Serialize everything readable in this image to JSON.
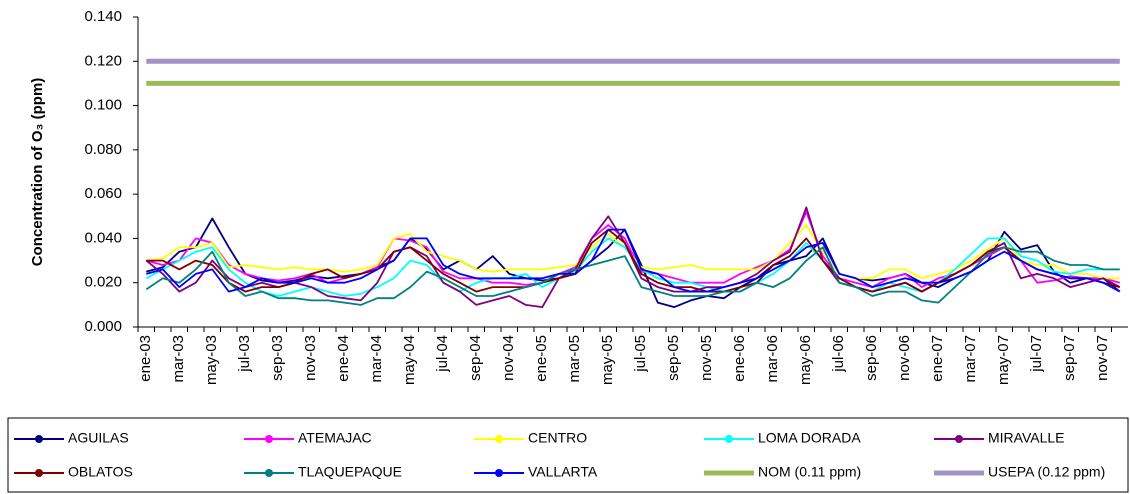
{
  "chart_data": {
    "type": "line",
    "ylabel": "Concentration of O₃ (ppm)",
    "categories": [
      "ene-03",
      null,
      "mar-03",
      null,
      "may-03",
      null,
      "jul-03",
      null,
      "sep-03",
      null,
      "nov-03",
      null,
      "ene-04",
      null,
      "mar-04",
      null,
      "may-04",
      null,
      "jul-04",
      null,
      "sep-04",
      null,
      "nov-04",
      null,
      "ene-05",
      null,
      "mar-05",
      null,
      "may-05",
      null,
      "jul-05",
      null,
      "sep-05",
      null,
      "nov-05",
      null,
      "ene-06",
      null,
      "mar-06",
      null,
      "may-06",
      null,
      "jul-06",
      null,
      "sep-06",
      null,
      "nov-06",
      null,
      "ene-07",
      null,
      "mar-07",
      null,
      "may-07",
      null,
      "jul-07",
      null,
      "sep-07",
      null,
      "nov-07",
      null
    ],
    "ylim": [
      0,
      0.14
    ],
    "yticks": [
      {
        "value": 0,
        "label": "0.000"
      },
      {
        "value": 0.02,
        "label": "0.020"
      },
      {
        "value": 0.04,
        "label": "0.040"
      },
      {
        "value": 0.06,
        "label": "0.060"
      },
      {
        "value": 0.08,
        "label": "0.080"
      },
      {
        "value": 0.1,
        "label": "0.100"
      },
      {
        "value": 0.12,
        "label": "0.120"
      },
      {
        "value": 0.14,
        "label": "0.140"
      }
    ],
    "grid": false,
    "series": [
      {
        "name": "AGUILAS",
        "color": "#000080",
        "values": [
          0.025,
          0.027,
          0.034,
          0.036,
          0.049,
          0.036,
          0.024,
          0.021,
          0.02,
          0.021,
          0.023,
          0.022,
          0.023,
          0.024,
          0.027,
          0.03,
          0.04,
          0.035,
          0.026,
          0.03,
          0.026,
          0.032,
          0.024,
          0.022,
          0.021,
          0.022,
          0.024,
          0.03,
          0.036,
          0.044,
          0.028,
          0.011,
          0.009,
          0.012,
          0.014,
          0.013,
          0.018,
          0.022,
          0.028,
          0.03,
          0.032,
          0.04,
          0.024,
          0.022,
          0.021,
          0.022,
          0.024,
          0.02,
          0.018,
          0.022,
          0.025,
          0.03,
          0.043,
          0.035,
          0.037,
          0.025,
          0.02,
          0.022,
          0.022,
          0.016
        ]
      },
      {
        "name": "ATEMAJAC",
        "color": "#ff00ff",
        "values": [
          0.03,
          0.028,
          0.03,
          0.04,
          0.038,
          0.028,
          0.024,
          0.022,
          0.021,
          0.022,
          0.024,
          0.02,
          0.022,
          0.024,
          0.027,
          0.04,
          0.039,
          0.036,
          0.025,
          0.022,
          0.022,
          0.02,
          0.02,
          0.019,
          0.02,
          0.024,
          0.027,
          0.04,
          0.046,
          0.04,
          0.025,
          0.024,
          0.022,
          0.02,
          0.02,
          0.02,
          0.024,
          0.027,
          0.03,
          0.035,
          0.052,
          0.032,
          0.022,
          0.02,
          0.018,
          0.022,
          0.024,
          0.018,
          0.022,
          0.024,
          0.028,
          0.032,
          0.036,
          0.03,
          0.02,
          0.021,
          0.023,
          0.022,
          0.022,
          0.02
        ]
      },
      {
        "name": "CENTRO",
        "color": "#ffff00",
        "values": [
          0.03,
          0.031,
          0.036,
          0.036,
          0.038,
          0.027,
          0.028,
          0.027,
          0.026,
          0.027,
          0.026,
          0.026,
          0.025,
          0.026,
          0.028,
          0.04,
          0.042,
          0.034,
          0.032,
          0.03,
          0.026,
          0.025,
          0.026,
          0.026,
          0.026,
          0.027,
          0.028,
          0.036,
          0.042,
          0.036,
          0.027,
          0.026,
          0.027,
          0.028,
          0.026,
          0.026,
          0.026,
          0.026,
          0.03,
          0.038,
          0.046,
          0.034,
          0.024,
          0.022,
          0.022,
          0.026,
          0.026,
          0.022,
          0.024,
          0.026,
          0.03,
          0.035,
          0.04,
          0.03,
          0.028,
          0.028,
          0.024,
          0.024,
          0.022,
          0.022
        ]
      },
      {
        "name": "LOMA DORADA",
        "color": "#00ffff",
        "values": [
          0.022,
          0.026,
          0.03,
          0.034,
          0.036,
          0.026,
          0.02,
          0.016,
          0.014,
          0.016,
          0.018,
          0.016,
          0.014,
          0.015,
          0.018,
          0.022,
          0.03,
          0.028,
          0.02,
          0.016,
          0.02,
          0.022,
          0.022,
          0.024,
          0.018,
          0.022,
          0.025,
          0.034,
          0.04,
          0.036,
          0.026,
          0.022,
          0.02,
          0.02,
          0.018,
          0.016,
          0.016,
          0.02,
          0.024,
          0.03,
          0.038,
          0.03,
          0.022,
          0.018,
          0.016,
          0.02,
          0.018,
          0.016,
          0.02,
          0.026,
          0.033,
          0.04,
          0.04,
          0.032,
          0.03,
          0.025,
          0.024,
          0.026,
          0.026,
          0.026
        ]
      },
      {
        "name": "MIRAVALLE",
        "color": "#800080",
        "values": [
          0.03,
          0.024,
          0.016,
          0.02,
          0.03,
          0.022,
          0.018,
          0.02,
          0.018,
          0.02,
          0.018,
          0.014,
          0.013,
          0.012,
          0.02,
          0.034,
          0.036,
          0.032,
          0.02,
          0.016,
          0.01,
          0.012,
          0.014,
          0.01,
          0.009,
          0.022,
          0.026,
          0.04,
          0.05,
          0.038,
          0.022,
          0.018,
          0.016,
          0.016,
          0.018,
          0.018,
          0.02,
          0.024,
          0.03,
          0.034,
          0.054,
          0.03,
          0.02,
          0.018,
          0.016,
          0.018,
          0.02,
          0.016,
          0.02,
          0.024,
          0.028,
          0.034,
          0.038,
          0.022,
          0.024,
          0.022,
          0.018,
          0.02,
          0.022,
          0.018
        ]
      },
      {
        "name": "OBLATOS",
        "color": "#800000",
        "values": [
          0.03,
          0.03,
          0.026,
          0.03,
          0.028,
          0.02,
          0.016,
          0.018,
          0.018,
          0.02,
          0.024,
          0.026,
          0.022,
          0.024,
          0.026,
          0.034,
          0.036,
          0.03,
          0.024,
          0.02,
          0.016,
          0.018,
          0.018,
          0.018,
          0.02,
          0.022,
          0.024,
          0.038,
          0.044,
          0.038,
          0.024,
          0.02,
          0.018,
          0.018,
          0.016,
          0.016,
          0.018,
          0.02,
          0.028,
          0.032,
          0.04,
          0.03,
          0.022,
          0.018,
          0.016,
          0.018,
          0.02,
          0.016,
          0.02,
          0.024,
          0.028,
          0.034,
          0.036,
          0.03,
          0.026,
          0.024,
          0.022,
          0.022,
          0.02,
          0.018
        ]
      },
      {
        "name": "TLAQUEPAQUE",
        "color": "#008080",
        "values": [
          0.017,
          0.022,
          0.02,
          0.026,
          0.034,
          0.02,
          0.014,
          0.016,
          0.013,
          0.013,
          0.012,
          0.012,
          0.011,
          0.01,
          0.013,
          0.013,
          0.018,
          0.025,
          0.022,
          0.018,
          0.014,
          0.014,
          0.016,
          0.018,
          0.02,
          0.024,
          0.026,
          0.028,
          0.03,
          0.032,
          0.018,
          0.016,
          0.014,
          0.014,
          0.014,
          0.016,
          0.016,
          0.02,
          0.018,
          0.022,
          0.03,
          0.036,
          0.02,
          0.018,
          0.014,
          0.016,
          0.016,
          0.012,
          0.011,
          0.018,
          0.025,
          0.033,
          0.036,
          0.034,
          0.034,
          0.03,
          0.028,
          0.028,
          0.026,
          0.026
        ]
      },
      {
        "name": "VALLARTA",
        "color": "#0000ff",
        "values": [
          0.024,
          0.026,
          0.018,
          0.024,
          0.026,
          0.016,
          0.018,
          0.022,
          0.02,
          0.02,
          0.022,
          0.02,
          0.02,
          0.022,
          0.026,
          0.03,
          0.04,
          0.04,
          0.028,
          0.024,
          0.022,
          0.022,
          0.022,
          0.022,
          0.022,
          0.024,
          0.024,
          0.03,
          0.044,
          0.044,
          0.026,
          0.024,
          0.018,
          0.016,
          0.016,
          0.018,
          0.02,
          0.022,
          0.026,
          0.03,
          0.036,
          0.038,
          0.024,
          0.022,
          0.018,
          0.02,
          0.022,
          0.02,
          0.02,
          0.022,
          0.025,
          0.03,
          0.034,
          0.03,
          0.026,
          0.024,
          0.022,
          0.022,
          0.02,
          0.016
        ]
      },
      {
        "name": "NOM (0.11 ppm)",
        "color": "#9bbb59",
        "values": [
          0.11,
          0.11,
          0.11,
          0.11,
          0.11,
          0.11,
          0.11,
          0.11,
          0.11,
          0.11,
          0.11,
          0.11,
          0.11,
          0.11,
          0.11,
          0.11,
          0.11,
          0.11,
          0.11,
          0.11,
          0.11,
          0.11,
          0.11,
          0.11,
          0.11,
          0.11,
          0.11,
          0.11,
          0.11,
          0.11,
          0.11,
          0.11,
          0.11,
          0.11,
          0.11,
          0.11,
          0.11,
          0.11,
          0.11,
          0.11,
          0.11,
          0.11,
          0.11,
          0.11,
          0.11,
          0.11,
          0.11,
          0.11,
          0.11,
          0.11,
          0.11,
          0.11,
          0.11,
          0.11,
          0.11,
          0.11,
          0.11,
          0.11,
          0.11,
          0.11
        ]
      },
      {
        "name": "USEPA (0.12 ppm)",
        "color": "#a094c4",
        "values": [
          0.12,
          0.12,
          0.12,
          0.12,
          0.12,
          0.12,
          0.12,
          0.12,
          0.12,
          0.12,
          0.12,
          0.12,
          0.12,
          0.12,
          0.12,
          0.12,
          0.12,
          0.12,
          0.12,
          0.12,
          0.12,
          0.12,
          0.12,
          0.12,
          0.12,
          0.12,
          0.12,
          0.12,
          0.12,
          0.12,
          0.12,
          0.12,
          0.12,
          0.12,
          0.12,
          0.12,
          0.12,
          0.12,
          0.12,
          0.12,
          0.12,
          0.12,
          0.12,
          0.12,
          0.12,
          0.12,
          0.12,
          0.12,
          0.12,
          0.12,
          0.12,
          0.12,
          0.12,
          0.12,
          0.12,
          0.12,
          0.12,
          0.12,
          0.12,
          0.12
        ]
      }
    ]
  }
}
